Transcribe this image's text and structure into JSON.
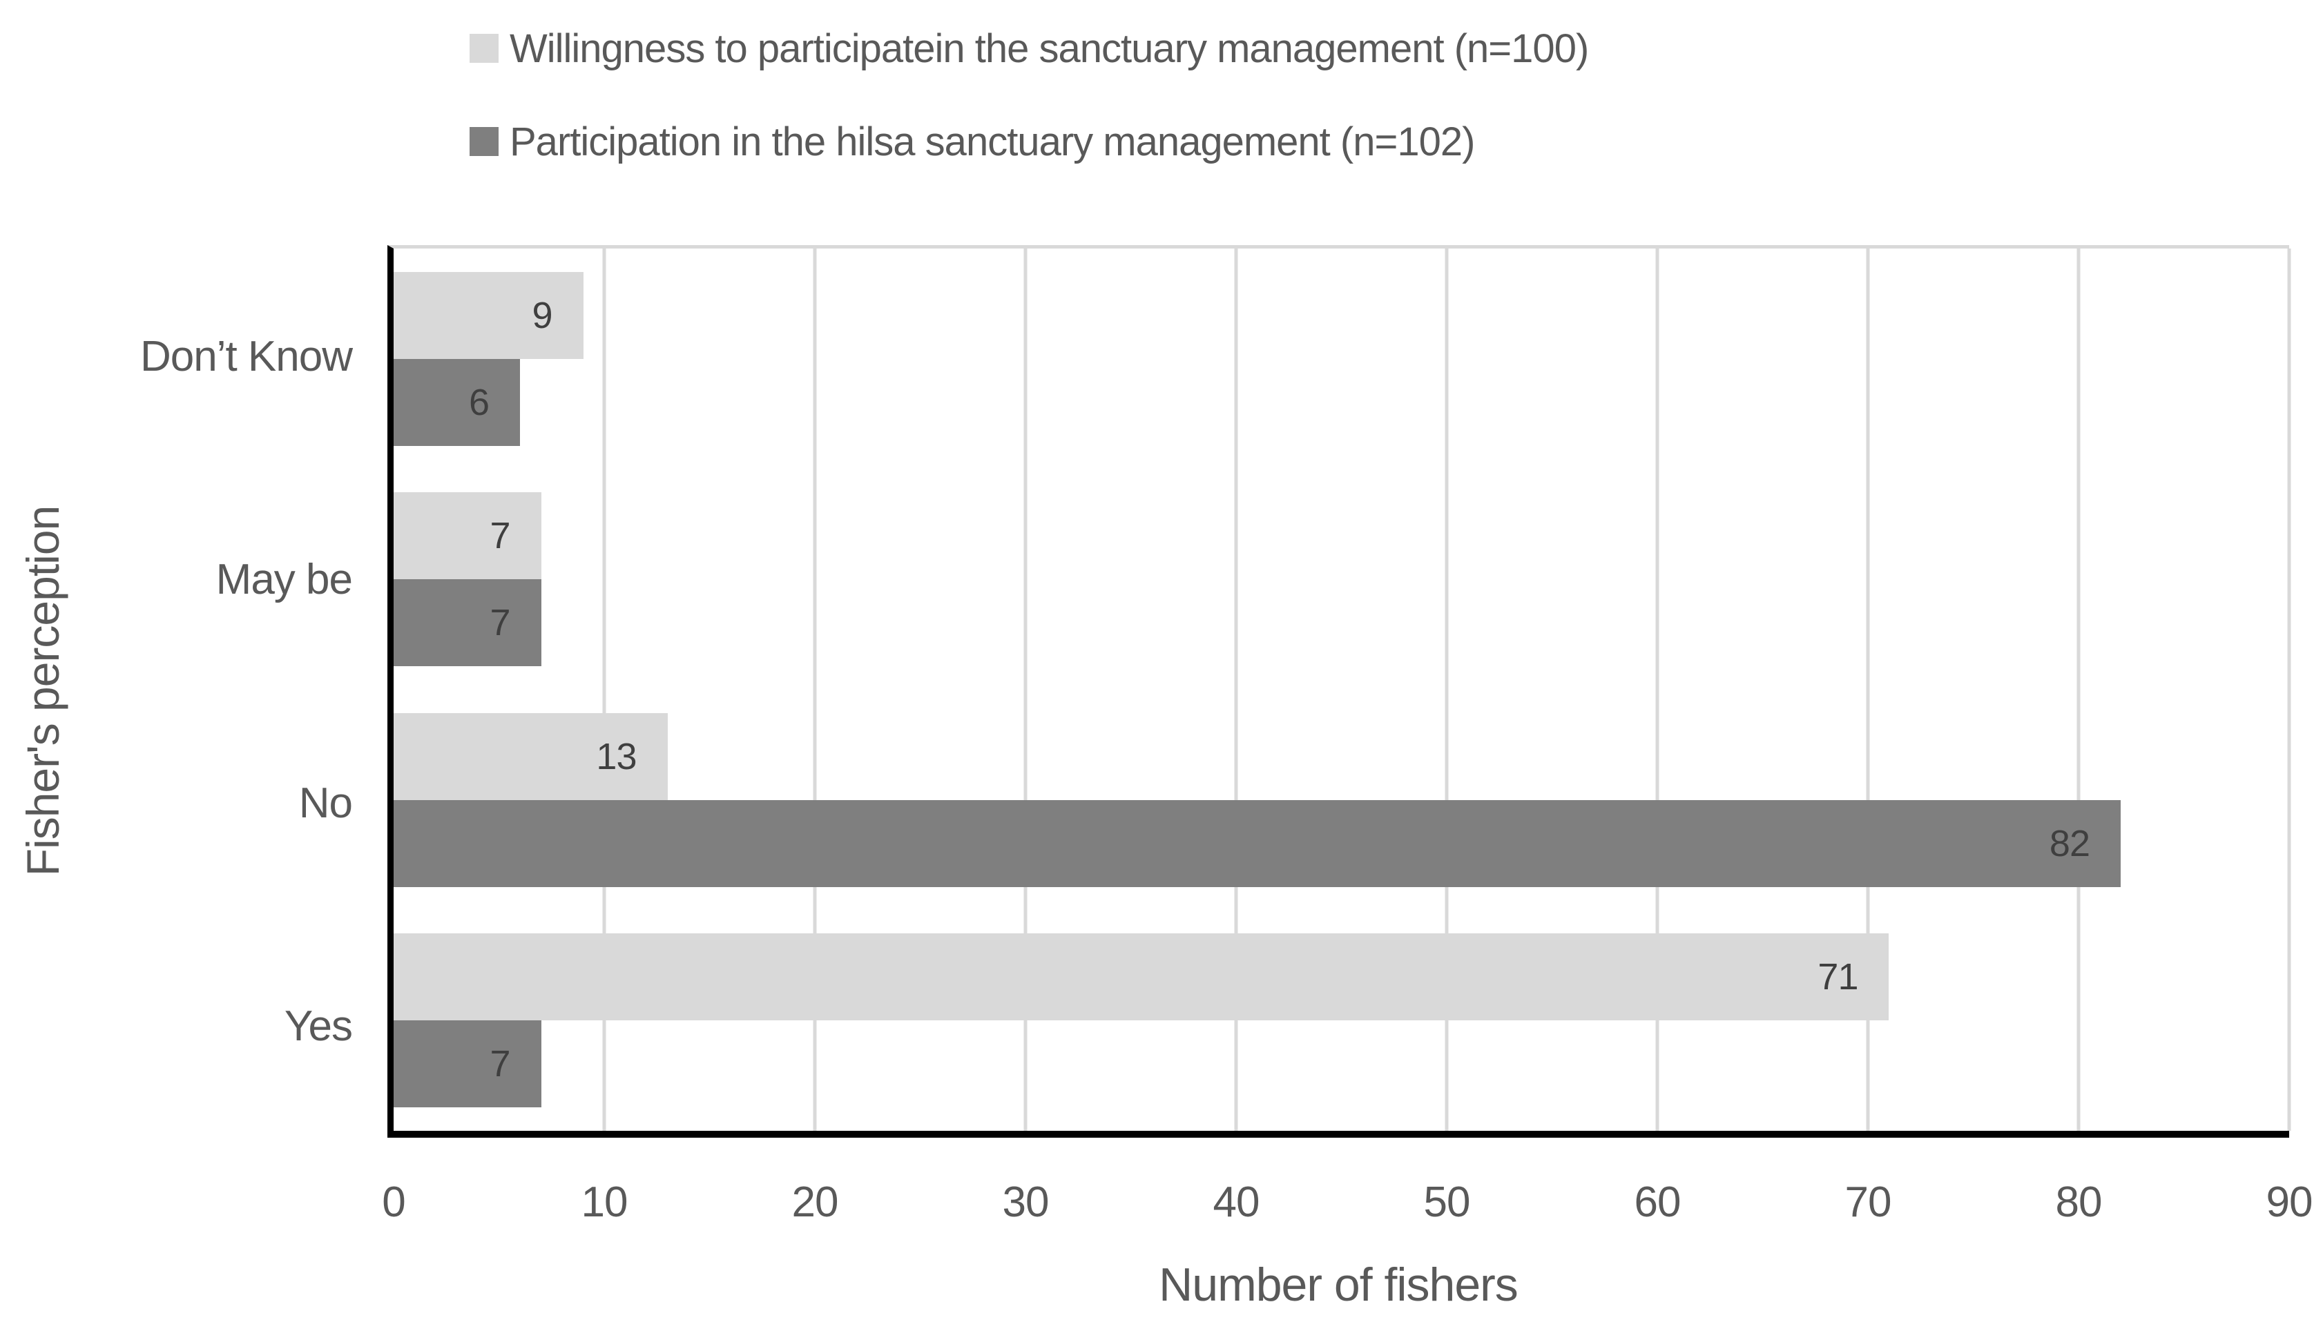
{
  "chart_data": {
    "type": "bar",
    "orientation": "horizontal",
    "title": "",
    "xlabel": "Number of fishers",
    "ylabel": "Fisher's perception",
    "categories_top_to_bottom": [
      "Don’t Know",
      "May be",
      "No",
      "Yes"
    ],
    "series": [
      {
        "name": "Willingness to participatein the sanctuary management (n=100)",
        "color": "#d9d9d9",
        "values": [
          9,
          7,
          13,
          71
        ]
      },
      {
        "name": "Participation in the hilsa sanctuary management (n=102)",
        "color": "#7f7f7f",
        "values": [
          6,
          7,
          82,
          7
        ]
      }
    ],
    "xlim": [
      0,
      90
    ],
    "xticks": [
      0,
      10,
      20,
      30,
      40,
      50,
      60,
      70,
      80,
      90
    ],
    "grid": "vertical",
    "legend_position": "top",
    "value_labels": "inside-end"
  },
  "colors": {
    "axis_line": "#000000",
    "gridline": "#d9d9d9",
    "plot_border_top": "#d9d9d9",
    "axis_text": "#595959",
    "value_label_text": "#3f3f3f",
    "series_light": "#d9d9d9",
    "series_dark": "#7f7f7f",
    "background": "#ffffff"
  }
}
